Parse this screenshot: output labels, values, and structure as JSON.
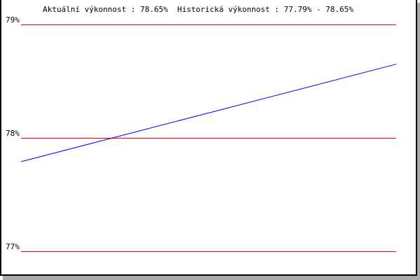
{
  "chart_data": {
    "type": "line",
    "title": "Aktuální výkonnost : 78.65%  Historická výkonnost : 77.79% - 78.65%",
    "xlabel": "",
    "ylabel": "",
    "ylim": [
      77,
      79
    ],
    "yticks": [
      {
        "value": 79,
        "label": "79%"
      },
      {
        "value": 78,
        "label": "78%"
      },
      {
        "value": 77,
        "label": "77%"
      }
    ],
    "grid": true,
    "series": [
      {
        "values": [
          77.79,
          78.65
        ],
        "color": "#0000ff"
      }
    ],
    "colors": {
      "grid": "#ff0000",
      "line": "#0000ff",
      "border": "#000000",
      "shadow": "#aaaaaa"
    }
  }
}
